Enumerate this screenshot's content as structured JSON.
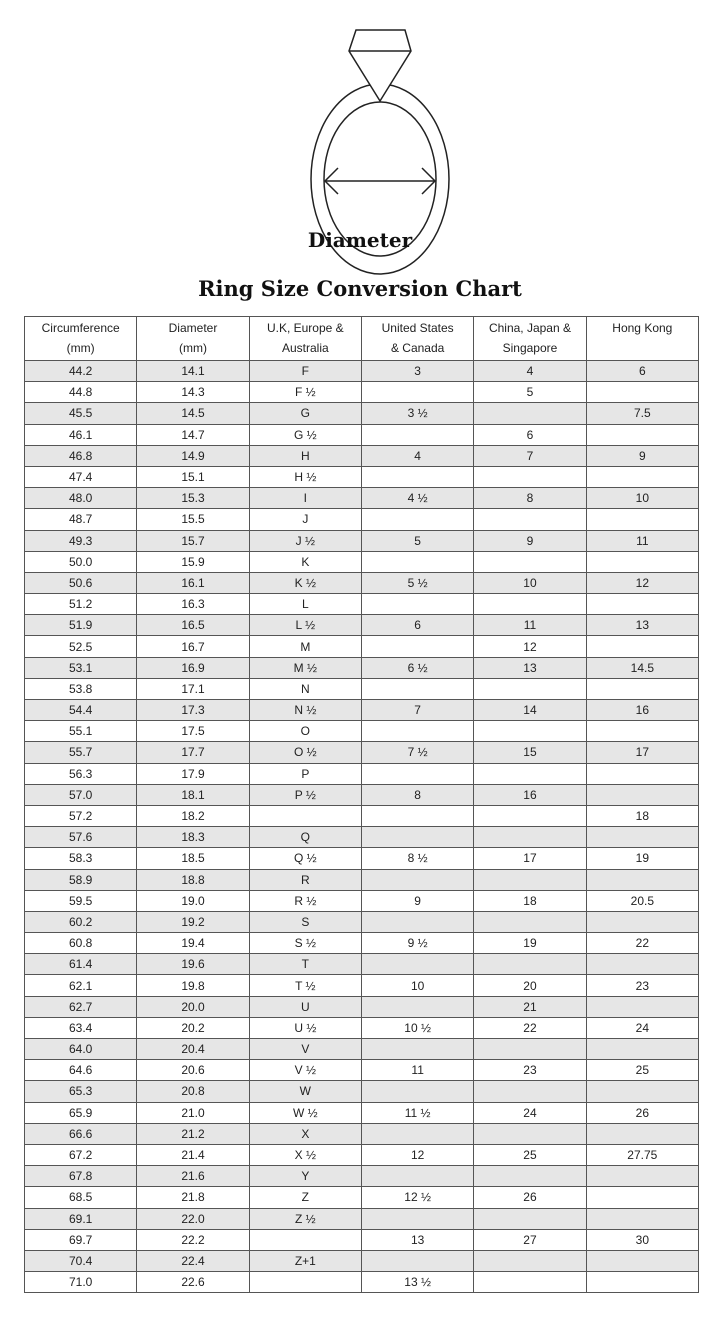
{
  "diagram_label": "Diameter",
  "title": "Ring Size Conversion Chart",
  "columns": [
    [
      "Circumference",
      "(mm)"
    ],
    [
      "Diameter",
      "(mm)"
    ],
    [
      "U.K, Europe &",
      "Australia"
    ],
    [
      "United States",
      "& Canada"
    ],
    [
      "China, Japan &",
      "Singapore"
    ],
    [
      "Hong Kong",
      ""
    ]
  ],
  "rows": [
    [
      "44.2",
      "14.1",
      "F",
      "3",
      "4",
      "6"
    ],
    [
      "44.8",
      "14.3",
      "F ½",
      "",
      "5",
      ""
    ],
    [
      "45.5",
      "14.5",
      "G",
      "3 ½",
      "",
      "7.5"
    ],
    [
      "46.1",
      "14.7",
      "G ½",
      "",
      "6",
      ""
    ],
    [
      "46.8",
      "14.9",
      "H",
      "4",
      "7",
      "9"
    ],
    [
      "47.4",
      "15.1",
      "H ½",
      "",
      "",
      ""
    ],
    [
      "48.0",
      "15.3",
      "I",
      "4 ½",
      "8",
      "10"
    ],
    [
      "48.7",
      "15.5",
      "J",
      "",
      "",
      ""
    ],
    [
      "49.3",
      "15.7",
      "J ½",
      "5",
      "9",
      "11"
    ],
    [
      "50.0",
      "15.9",
      "K",
      "",
      "",
      ""
    ],
    [
      "50.6",
      "16.1",
      "K ½",
      "5 ½",
      "10",
      "12"
    ],
    [
      "51.2",
      "16.3",
      "L",
      "",
      "",
      ""
    ],
    [
      "51.9",
      "16.5",
      "L ½",
      "6",
      "11",
      "13"
    ],
    [
      "52.5",
      "16.7",
      "M",
      "",
      "12",
      ""
    ],
    [
      "53.1",
      "16.9",
      "M ½",
      "6 ½",
      "13",
      "14.5"
    ],
    [
      "53.8",
      "17.1",
      "N",
      "",
      "",
      ""
    ],
    [
      "54.4",
      "17.3",
      "N ½",
      "7",
      "14",
      "16"
    ],
    [
      "55.1",
      "17.5",
      "O",
      "",
      "",
      ""
    ],
    [
      "55.7",
      "17.7",
      "O ½",
      "7 ½",
      "15",
      "17"
    ],
    [
      "56.3",
      "17.9",
      "P",
      "",
      "",
      ""
    ],
    [
      "57.0",
      "18.1",
      "P ½",
      "8",
      "16",
      ""
    ],
    [
      "57.2",
      "18.2",
      "",
      "",
      "",
      "18"
    ],
    [
      "57.6",
      "18.3",
      "Q",
      "",
      "",
      ""
    ],
    [
      "58.3",
      "18.5",
      "Q ½",
      "8 ½",
      "17",
      "19"
    ],
    [
      "58.9",
      "18.8",
      "R",
      "",
      "",
      ""
    ],
    [
      "59.5",
      "19.0",
      "R ½",
      "9",
      "18",
      "20.5"
    ],
    [
      "60.2",
      "19.2",
      "S",
      "",
      "",
      ""
    ],
    [
      "60.8",
      "19.4",
      "S ½",
      "9 ½",
      "19",
      "22"
    ],
    [
      "61.4",
      "19.6",
      "T",
      "",
      "",
      ""
    ],
    [
      "62.1",
      "19.8",
      "T ½",
      "10",
      "20",
      "23"
    ],
    [
      "62.7",
      "20.0",
      "U",
      "",
      "21",
      ""
    ],
    [
      "63.4",
      "20.2",
      "U ½",
      "10 ½",
      "22",
      "24"
    ],
    [
      "64.0",
      "20.4",
      "V",
      "",
      "",
      ""
    ],
    [
      "64.6",
      "20.6",
      "V ½",
      "11",
      "23",
      "25"
    ],
    [
      "65.3",
      "20.8",
      "W",
      "",
      "",
      ""
    ],
    [
      "65.9",
      "21.0",
      "W ½",
      "11 ½",
      "24",
      "26"
    ],
    [
      "66.6",
      "21.2",
      "X",
      "",
      "",
      ""
    ],
    [
      "67.2",
      "21.4",
      "X ½",
      "12",
      "25",
      "27.75"
    ],
    [
      "67.8",
      "21.6",
      "Y",
      "",
      "",
      ""
    ],
    [
      "68.5",
      "21.8",
      "Z",
      "12 ½",
      "26",
      ""
    ],
    [
      "69.1",
      "22.0",
      "Z ½",
      "",
      "",
      ""
    ],
    [
      "69.7",
      "22.2",
      "",
      "13",
      "27",
      "30"
    ],
    [
      "70.4",
      "22.4",
      "Z+1",
      "",
      "",
      ""
    ],
    [
      "71.0",
      "22.6",
      "",
      "13 ½",
      "",
      ""
    ]
  ],
  "colors": {
    "row_shade": "#e6e6e6",
    "border": "#555555"
  }
}
